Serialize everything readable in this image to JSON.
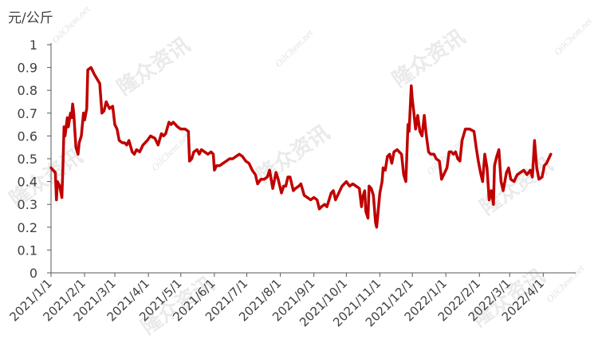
{
  "chart_data": {
    "type": "line",
    "ylabel": "元/公斤",
    "ylim": [
      0,
      1
    ],
    "yticks": [
      "0",
      "0.1",
      "0.2",
      "0.3",
      "0.4",
      "0.5",
      "0.6",
      "0.7",
      "0.8",
      "0.9",
      "1"
    ],
    "xticks": [
      "2021/1/1",
      "2021/2/1",
      "2021/3/1",
      "2021/4/1",
      "2021/5/1",
      "2021/6/1",
      "2021/7/1",
      "2021/8/1",
      "2021/9/1",
      "2021/10/1",
      "2021/11/1",
      "2021/12/1",
      "2022/1/1",
      "2022/2/1",
      "2022/3/1",
      "2022/4/1"
    ],
    "x_range": [
      "2021-01-01",
      "2022-05-01"
    ],
    "grid": false,
    "legend": "none",
    "series": [
      {
        "color": "#c00000",
        "points": [
          [
            "2021-01-01",
            0.46
          ],
          [
            "2021-01-05",
            0.44
          ],
          [
            "2021-01-06",
            0.32
          ],
          [
            "2021-01-07",
            0.4
          ],
          [
            "2021-01-09",
            0.38
          ],
          [
            "2021-01-11",
            0.33
          ],
          [
            "2021-01-12",
            0.46
          ],
          [
            "2021-01-13",
            0.64
          ],
          [
            "2021-01-14",
            0.6
          ],
          [
            "2021-01-16",
            0.68
          ],
          [
            "2021-01-17",
            0.64
          ],
          [
            "2021-01-19",
            0.7
          ],
          [
            "2021-01-20",
            0.68
          ],
          [
            "2021-01-21",
            0.74
          ],
          [
            "2021-01-22",
            0.7
          ],
          [
            "2021-01-24",
            0.55
          ],
          [
            "2021-01-26",
            0.52
          ],
          [
            "2021-01-27",
            0.57
          ],
          [
            "2021-01-29",
            0.6
          ],
          [
            "2021-01-31",
            0.7
          ],
          [
            "2021-02-01",
            0.67
          ],
          [
            "2021-02-03",
            0.72
          ],
          [
            "2021-02-04",
            0.89
          ],
          [
            "2021-02-07",
            0.9
          ],
          [
            "2021-02-10",
            0.87
          ],
          [
            "2021-02-15",
            0.83
          ],
          [
            "2021-02-17",
            0.7
          ],
          [
            "2021-02-19",
            0.71
          ],
          [
            "2021-02-21",
            0.75
          ],
          [
            "2021-02-24",
            0.72
          ],
          [
            "2021-02-27",
            0.73
          ],
          [
            "2021-03-01",
            0.65
          ],
          [
            "2021-03-03",
            0.63
          ],
          [
            "2021-03-05",
            0.58
          ],
          [
            "2021-03-08",
            0.57
          ],
          [
            "2021-03-10",
            0.57
          ],
          [
            "2021-03-12",
            0.56
          ],
          [
            "2021-03-14",
            0.58
          ],
          [
            "2021-03-17",
            0.53
          ],
          [
            "2021-03-19",
            0.52
          ],
          [
            "2021-03-21",
            0.54
          ],
          [
            "2021-03-24",
            0.53
          ],
          [
            "2021-03-27",
            0.56
          ],
          [
            "2021-03-31",
            0.58
          ],
          [
            "2021-04-03",
            0.6
          ],
          [
            "2021-04-07",
            0.59
          ],
          [
            "2021-04-10",
            0.56
          ],
          [
            "2021-04-13",
            0.61
          ],
          [
            "2021-04-15",
            0.6
          ],
          [
            "2021-04-17",
            0.61
          ],
          [
            "2021-04-20",
            0.66
          ],
          [
            "2021-04-22",
            0.65
          ],
          [
            "2021-04-24",
            0.66
          ],
          [
            "2021-04-28",
            0.64
          ],
          [
            "2021-05-01",
            0.63
          ],
          [
            "2021-05-05",
            0.63
          ],
          [
            "2021-05-08",
            0.62
          ],
          [
            "2021-05-09",
            0.49
          ],
          [
            "2021-05-11",
            0.5
          ],
          [
            "2021-05-13",
            0.53
          ],
          [
            "2021-05-16",
            0.54
          ],
          [
            "2021-05-18",
            0.52
          ],
          [
            "2021-05-20",
            0.54
          ],
          [
            "2021-05-23",
            0.53
          ],
          [
            "2021-05-26",
            0.52
          ],
          [
            "2021-05-29",
            0.53
          ],
          [
            "2021-05-31",
            0.52
          ],
          [
            "2021-06-01",
            0.45
          ],
          [
            "2021-06-03",
            0.47
          ],
          [
            "2021-06-06",
            0.47
          ],
          [
            "2021-06-09",
            0.48
          ],
          [
            "2021-06-12",
            0.49
          ],
          [
            "2021-06-15",
            0.5
          ],
          [
            "2021-06-18",
            0.5
          ],
          [
            "2021-06-21",
            0.51
          ],
          [
            "2021-06-24",
            0.52
          ],
          [
            "2021-06-27",
            0.51
          ],
          [
            "2021-06-30",
            0.49
          ],
          [
            "2021-07-03",
            0.48
          ],
          [
            "2021-07-06",
            0.45
          ],
          [
            "2021-07-09",
            0.43
          ],
          [
            "2021-07-11",
            0.39
          ],
          [
            "2021-07-14",
            0.41
          ],
          [
            "2021-07-17",
            0.41
          ],
          [
            "2021-07-20",
            0.42
          ],
          [
            "2021-07-22",
            0.45
          ],
          [
            "2021-07-25",
            0.37
          ],
          [
            "2021-07-28",
            0.44
          ],
          [
            "2021-07-30",
            0.41
          ],
          [
            "2021-08-02",
            0.35
          ],
          [
            "2021-08-04",
            0.38
          ],
          [
            "2021-08-06",
            0.38
          ],
          [
            "2021-08-08",
            0.42
          ],
          [
            "2021-08-10",
            0.42
          ],
          [
            "2021-08-13",
            0.36
          ],
          [
            "2021-08-15",
            0.37
          ],
          [
            "2021-08-18",
            0.38
          ],
          [
            "2021-08-20",
            0.39
          ],
          [
            "2021-08-23",
            0.34
          ],
          [
            "2021-08-26",
            0.33
          ],
          [
            "2021-08-29",
            0.32
          ],
          [
            "2021-09-01",
            0.33
          ],
          [
            "2021-09-04",
            0.32
          ],
          [
            "2021-09-06",
            0.28
          ],
          [
            "2021-09-08",
            0.29
          ],
          [
            "2021-09-11",
            0.3
          ],
          [
            "2021-09-13",
            0.29
          ],
          [
            "2021-09-15",
            0.32
          ],
          [
            "2021-09-17",
            0.35
          ],
          [
            "2021-09-19",
            0.36
          ],
          [
            "2021-09-21",
            0.32
          ],
          [
            "2021-09-24",
            0.35
          ],
          [
            "2021-09-27",
            0.38
          ],
          [
            "2021-09-29",
            0.39
          ],
          [
            "2021-10-01",
            0.4
          ],
          [
            "2021-10-04",
            0.38
          ],
          [
            "2021-10-07",
            0.39
          ],
          [
            "2021-10-10",
            0.38
          ],
          [
            "2021-10-13",
            0.37
          ],
          [
            "2021-10-15",
            0.29
          ],
          [
            "2021-10-16",
            0.33
          ],
          [
            "2021-10-18",
            0.36
          ],
          [
            "2021-10-19",
            0.27
          ],
          [
            "2021-10-21",
            0.24
          ],
          [
            "2021-10-22",
            0.38
          ],
          [
            "2021-10-24",
            0.37
          ],
          [
            "2021-10-26",
            0.34
          ],
          [
            "2021-10-28",
            0.22
          ],
          [
            "2021-10-29",
            0.2
          ],
          [
            "2021-11-01",
            0.35
          ],
          [
            "2021-11-03",
            0.4
          ],
          [
            "2021-11-04",
            0.46
          ],
          [
            "2021-11-06",
            0.45
          ],
          [
            "2021-11-08",
            0.51
          ],
          [
            "2021-11-10",
            0.52
          ],
          [
            "2021-11-12",
            0.48
          ],
          [
            "2021-11-14",
            0.53
          ],
          [
            "2021-11-17",
            0.54
          ],
          [
            "2021-11-21",
            0.52
          ],
          [
            "2021-11-23",
            0.43
          ],
          [
            "2021-11-25",
            0.4
          ],
          [
            "2021-11-27",
            0.65
          ],
          [
            "2021-11-28",
            0.62
          ],
          [
            "2021-11-30",
            0.82
          ],
          [
            "2021-12-01",
            0.76
          ],
          [
            "2021-12-02",
            0.72
          ],
          [
            "2021-12-04",
            0.63
          ],
          [
            "2021-12-06",
            0.69
          ],
          [
            "2021-12-08",
            0.62
          ],
          [
            "2021-12-10",
            0.6
          ],
          [
            "2021-12-12",
            0.69
          ],
          [
            "2021-12-14",
            0.6
          ],
          [
            "2021-12-16",
            0.53
          ],
          [
            "2021-12-18",
            0.52
          ],
          [
            "2021-12-21",
            0.52
          ],
          [
            "2021-12-23",
            0.5
          ],
          [
            "2021-12-26",
            0.49
          ],
          [
            "2021-12-28",
            0.41
          ],
          [
            "2021-12-30",
            0.43
          ],
          [
            "2022-01-02",
            0.46
          ],
          [
            "2022-01-04",
            0.53
          ],
          [
            "2022-01-06",
            0.53
          ],
          [
            "2022-01-08",
            0.52
          ],
          [
            "2022-01-10",
            0.53
          ],
          [
            "2022-01-12",
            0.5
          ],
          [
            "2022-01-14",
            0.49
          ],
          [
            "2022-01-16",
            0.58
          ],
          [
            "2022-01-19",
            0.63
          ],
          [
            "2022-01-23",
            0.63
          ],
          [
            "2022-01-27",
            0.62
          ],
          [
            "2022-01-29",
            0.55
          ],
          [
            "2022-01-31",
            0.49
          ],
          [
            "2022-02-02",
            0.44
          ],
          [
            "2022-02-04",
            0.4
          ],
          [
            "2022-02-06",
            0.52
          ],
          [
            "2022-02-08",
            0.46
          ],
          [
            "2022-02-10",
            0.32
          ],
          [
            "2022-02-12",
            0.36
          ],
          [
            "2022-02-14",
            0.3
          ],
          [
            "2022-02-15",
            0.47
          ],
          [
            "2022-02-17",
            0.51
          ],
          [
            "2022-02-19",
            0.54
          ],
          [
            "2022-02-21",
            0.4
          ],
          [
            "2022-02-23",
            0.36
          ],
          [
            "2022-02-26",
            0.44
          ],
          [
            "2022-02-28",
            0.46
          ],
          [
            "2022-03-02",
            0.41
          ],
          [
            "2022-03-05",
            0.4
          ],
          [
            "2022-03-08",
            0.43
          ],
          [
            "2022-03-11",
            0.44
          ],
          [
            "2022-03-14",
            0.45
          ],
          [
            "2022-03-17",
            0.43
          ],
          [
            "2022-03-20",
            0.45
          ],
          [
            "2022-03-22",
            0.42
          ],
          [
            "2022-03-24",
            0.58
          ],
          [
            "2022-03-26",
            0.46
          ],
          [
            "2022-03-28",
            0.41
          ],
          [
            "2022-03-31",
            0.42
          ],
          [
            "2022-04-02",
            0.47
          ],
          [
            "2022-04-04",
            0.48
          ],
          [
            "2022-04-06",
            0.5
          ],
          [
            "2022-04-08",
            0.52
          ]
        ]
      }
    ]
  },
  "watermark": {
    "brand": "隆众资讯",
    "site": "OilChem.net"
  }
}
